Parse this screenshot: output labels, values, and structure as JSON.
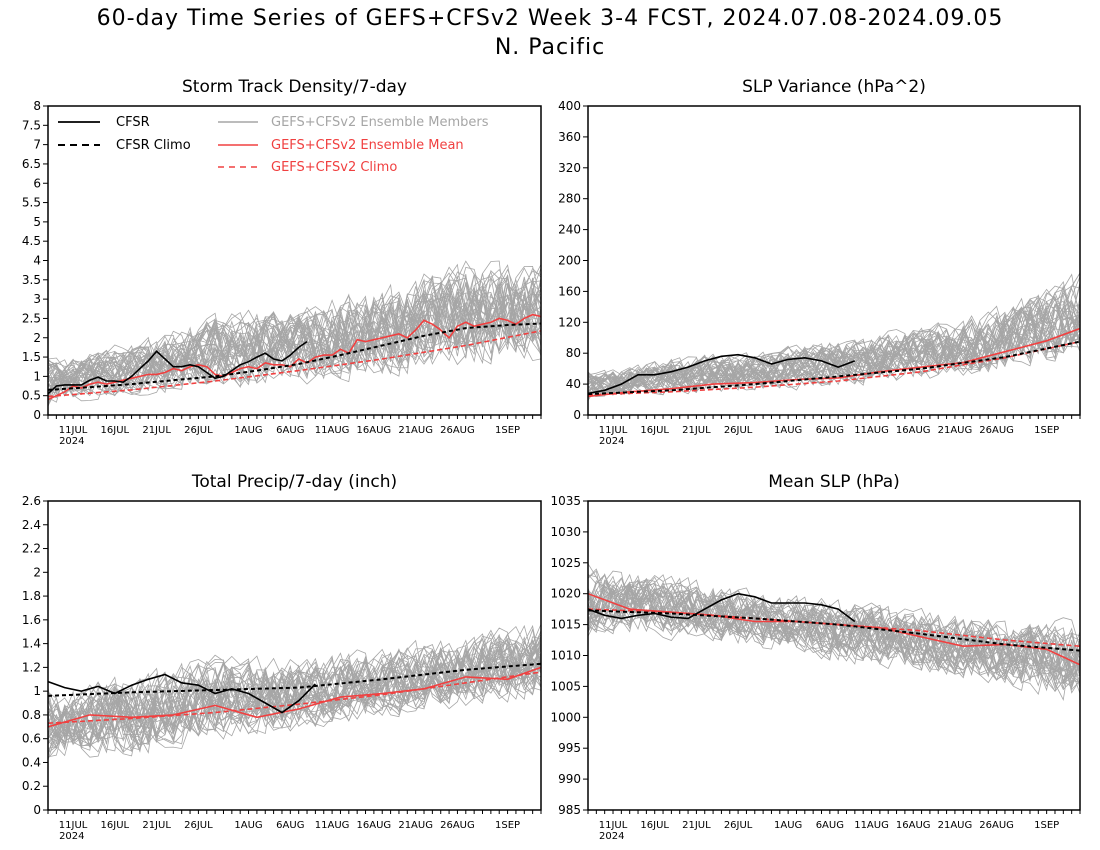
{
  "title": "60-day Time Series of GEFS+CFSv2 Week 3-4 FCST, 2024.07.08-2024.09.05",
  "subtitle": "N. Pacific",
  "colors": {
    "cfsr": "#000000",
    "members": "#a6a6a6",
    "ensemble_mean": "#f04040",
    "gefs_climo": "#f04040"
  },
  "legend": {
    "cfsr": "CFSR",
    "cfsr_climo": "CFSR Climo",
    "members": "GEFS+CFSv2 Ensemble Members",
    "ensemble_mean": "GEFS+CFSv2 Ensemble Mean",
    "gefs_climo": "GEFS+CFSv2 Climo"
  },
  "chart_data": [
    {
      "type": "line",
      "title": "Storm Track Density/7-day",
      "x_tick_labels": [
        "11JUL",
        "16JUL",
        "21JUL",
        "26JUL",
        "1AUG",
        "6AUG",
        "11AUG",
        "16AUG",
        "21AUG",
        "26AUG",
        "1SEP"
      ],
      "x_tick_days": [
        3,
        8,
        13,
        18,
        24,
        29,
        34,
        39,
        44,
        49,
        55
      ],
      "year_label": "2024",
      "x_range": [
        0,
        59
      ],
      "ylim": [
        0,
        8
      ],
      "y_ticks": [
        "0",
        "0.5",
        "1",
        "1.5",
        "2",
        "2.5",
        "3",
        "3.5",
        "4",
        "4.5",
        "5",
        "5.5",
        "6",
        "6.5",
        "7",
        "7.5",
        "8"
      ],
      "legend_position": "top",
      "series": [
        {
          "name": "CFSR",
          "style": "solid-black",
          "x": [
            0,
            1,
            2,
            3,
            4,
            5,
            6,
            7,
            8,
            9,
            10,
            11,
            12,
            13,
            14,
            15,
            16,
            17,
            18,
            19,
            20,
            21,
            22,
            23,
            24,
            25,
            26,
            27,
            28,
            29,
            30,
            31
          ],
          "values": [
            0.55,
            0.75,
            0.78,
            0.78,
            0.78,
            0.9,
            0.98,
            0.88,
            0.88,
            0.85,
            1.0,
            1.2,
            1.4,
            1.65,
            1.45,
            1.25,
            1.25,
            1.3,
            1.25,
            1.1,
            0.95,
            1.0,
            1.15,
            1.3,
            1.38,
            1.5,
            1.6,
            1.45,
            1.4,
            1.55,
            1.75,
            1.9
          ]
        },
        {
          "name": "CFSR Climo",
          "style": "dashed-black",
          "x": [
            0,
            5,
            10,
            15,
            20,
            25,
            30,
            35,
            40,
            45,
            50,
            55,
            59
          ],
          "values": [
            0.65,
            0.72,
            0.8,
            0.9,
            1.0,
            1.15,
            1.32,
            1.55,
            1.8,
            2.05,
            2.25,
            2.33,
            2.37
          ]
        },
        {
          "name": "GEFS+CFSv2 Ensemble Mean",
          "style": "solid-red",
          "x": [
            0,
            1,
            2,
            3,
            4,
            5,
            6,
            7,
            8,
            9,
            10,
            11,
            12,
            13,
            14,
            15,
            16,
            17,
            18,
            19,
            20,
            21,
            22,
            23,
            24,
            25,
            26,
            27,
            28,
            29,
            30,
            31,
            32,
            33,
            34,
            35,
            36,
            37,
            38,
            39,
            40,
            41,
            42,
            43,
            44,
            45,
            46,
            47,
            48,
            49,
            50,
            51,
            52,
            53,
            54,
            55,
            56,
            57,
            58,
            59
          ],
          "values": [
            0.4,
            0.5,
            0.6,
            0.75,
            0.7,
            0.8,
            0.85,
            0.8,
            0.85,
            0.9,
            0.95,
            1.0,
            1.05,
            1.05,
            1.1,
            1.2,
            1.15,
            1.25,
            1.3,
            1.25,
            1.05,
            1.0,
            1.1,
            1.2,
            1.25,
            1.2,
            1.35,
            1.3,
            1.3,
            1.25,
            1.45,
            1.35,
            1.5,
            1.55,
            1.55,
            1.7,
            1.6,
            1.95,
            1.9,
            1.95,
            2.0,
            2.05,
            2.1,
            2.0,
            2.2,
            2.45,
            2.35,
            2.2,
            2.0,
            2.3,
            2.4,
            2.3,
            2.35,
            2.4,
            2.5,
            2.45,
            2.35,
            2.5,
            2.6,
            2.55
          ]
        },
        {
          "name": "GEFS+CFSv2 Climo",
          "style": "dashed-red",
          "x": [
            0,
            10,
            20,
            30,
            40,
            50,
            59
          ],
          "values": [
            0.48,
            0.65,
            0.88,
            1.15,
            1.45,
            1.8,
            2.18
          ]
        }
      ],
      "members": {
        "count": 40,
        "spread_low": [
          0.1,
          0.2,
          0.3,
          0.4,
          0.55,
          0.7,
          0.9
        ],
        "spread_high": [
          1.6,
          2.2,
          3.0,
          3.3,
          3.9,
          4.6,
          4.4
        ],
        "x": [
          0,
          10,
          20,
          30,
          40,
          50,
          59
        ]
      }
    },
    {
      "type": "line",
      "title": "SLP Variance (hPa^2)",
      "x_tick_labels": [
        "11JUL",
        "16JUL",
        "21JUL",
        "26JUL",
        "1AUG",
        "6AUG",
        "11AUG",
        "16AUG",
        "21AUG",
        "26AUG",
        "1SEP"
      ],
      "x_tick_days": [
        3,
        8,
        13,
        18,
        24,
        29,
        34,
        39,
        44,
        49,
        55
      ],
      "year_label": "2024",
      "x_range": [
        0,
        59
      ],
      "ylim": [
        0,
        400
      ],
      "y_ticks": [
        "0",
        "40",
        "80",
        "120",
        "160",
        "200",
        "240",
        "280",
        "320",
        "360",
        "400"
      ],
      "series": [
        {
          "name": "CFSR",
          "style": "solid-black",
          "x": [
            0,
            2,
            4,
            6,
            8,
            10,
            12,
            14,
            16,
            18,
            20,
            22,
            24,
            26,
            28,
            30,
            32
          ],
          "values": [
            28,
            32,
            40,
            52,
            52,
            56,
            62,
            70,
            76,
            78,
            74,
            66,
            72,
            74,
            70,
            62,
            70
          ]
        },
        {
          "name": "CFSR Climo",
          "style": "dashed-black",
          "x": [
            0,
            10,
            20,
            30,
            40,
            50,
            59
          ],
          "values": [
            27,
            32,
            40,
            50,
            60,
            75,
            95
          ]
        },
        {
          "name": "GEFS+CFSv2 Ensemble Mean",
          "style": "solid-red",
          "x": [
            0,
            5,
            10,
            15,
            20,
            25,
            30,
            35,
            40,
            45,
            50,
            55,
            59
          ],
          "values": [
            24,
            30,
            34,
            40,
            42,
            46,
            48,
            56,
            62,
            68,
            82,
            96,
            112
          ]
        },
        {
          "name": "GEFS+CFSv2 Climo",
          "style": "dashed-red",
          "x": [
            0,
            10,
            20,
            30,
            40,
            50,
            59
          ],
          "values": [
            26,
            30,
            36,
            44,
            56,
            74,
            95
          ]
        }
      ],
      "members": {
        "count": 40,
        "spread_low": [
          15,
          18,
          20,
          25,
          30,
          40,
          50
        ],
        "spread_high": [
          60,
          85,
          95,
          110,
          130,
          160,
          210
        ],
        "x": [
          0,
          10,
          20,
          30,
          40,
          50,
          59
        ]
      }
    },
    {
      "type": "line",
      "title": "Total Precip/7-day (inch)",
      "x_tick_labels": [
        "11JUL",
        "16JUL",
        "21JUL",
        "26JUL",
        "1AUG",
        "6AUG",
        "11AUG",
        "16AUG",
        "21AUG",
        "26AUG",
        "1SEP"
      ],
      "x_tick_days": [
        3,
        8,
        13,
        18,
        24,
        29,
        34,
        39,
        44,
        49,
        55
      ],
      "year_label": "2024",
      "x_range": [
        0,
        59
      ],
      "ylim": [
        0,
        2.6
      ],
      "y_ticks": [
        "0",
        "0.2",
        "0.4",
        "0.6",
        "0.8",
        "1",
        "1.2",
        "1.4",
        "1.6",
        "1.8",
        "2",
        "2.2",
        "2.4",
        "2.6"
      ],
      "series": [
        {
          "name": "CFSR",
          "style": "solid-black",
          "x": [
            0,
            2,
            4,
            6,
            8,
            10,
            12,
            14,
            16,
            18,
            20,
            22,
            24,
            26,
            28,
            30,
            32
          ],
          "values": [
            1.08,
            1.03,
            1.0,
            1.04,
            0.98,
            1.05,
            1.1,
            1.14,
            1.07,
            1.05,
            0.98,
            1.02,
            0.98,
            0.9,
            0.82,
            0.92,
            1.06
          ]
        },
        {
          "name": "CFSR Climo",
          "style": "dashed-black",
          "x": [
            0,
            10,
            20,
            30,
            40,
            50,
            59
          ],
          "values": [
            0.96,
            0.99,
            1.01,
            1.03,
            1.1,
            1.18,
            1.23
          ]
        },
        {
          "name": "GEFS+CFSv2 Ensemble Mean",
          "style": "solid-red",
          "x": [
            0,
            5,
            10,
            15,
            20,
            25,
            30,
            35,
            40,
            45,
            50,
            55,
            59
          ],
          "values": [
            0.7,
            0.8,
            0.78,
            0.8,
            0.88,
            0.78,
            0.85,
            0.95,
            0.98,
            1.02,
            1.12,
            1.1,
            1.2
          ]
        },
        {
          "name": "GEFS+CFSv2 Climo",
          "style": "dashed-red",
          "x": [
            0,
            10,
            20,
            30,
            40,
            50,
            59
          ],
          "values": [
            0.73,
            0.77,
            0.82,
            0.89,
            0.97,
            1.07,
            1.16
          ]
        }
      ],
      "members": {
        "count": 40,
        "spread_low": [
          0.35,
          0.3,
          0.45,
          0.55,
          0.65,
          0.75,
          0.85
        ],
        "spread_high": [
          1.1,
          1.3,
          1.45,
          1.4,
          1.5,
          1.6,
          1.75
        ],
        "x": [
          0,
          10,
          20,
          30,
          40,
          50,
          59
        ]
      }
    },
    {
      "type": "line",
      "title": "Mean SLP (hPa)",
      "x_tick_labels": [
        "11JUL",
        "16JUL",
        "21JUL",
        "26JUL",
        "1AUG",
        "6AUG",
        "11AUG",
        "16AUG",
        "21AUG",
        "26AUG",
        "1SEP"
      ],
      "x_tick_days": [
        3,
        8,
        13,
        18,
        24,
        29,
        34,
        39,
        44,
        49,
        55
      ],
      "year_label": "2024",
      "x_range": [
        0,
        59
      ],
      "ylim": [
        985,
        1035
      ],
      "y_ticks": [
        "985",
        "990",
        "995",
        "1000",
        "1005",
        "1010",
        "1015",
        "1020",
        "1025",
        "1030",
        "1035"
      ],
      "series": [
        {
          "name": "CFSR",
          "style": "solid-black",
          "x": [
            0,
            2,
            4,
            6,
            8,
            10,
            12,
            14,
            16,
            18,
            20,
            22,
            24,
            26,
            28,
            30,
            32
          ],
          "values": [
            1017.5,
            1016.5,
            1016,
            1016.5,
            1016.8,
            1016.2,
            1016,
            1017.5,
            1019,
            1020,
            1019.5,
            1018.5,
            1018.5,
            1018.5,
            1018.2,
            1017.5,
            1015.5
          ]
        },
        {
          "name": "CFSR Climo",
          "style": "dashed-black",
          "x": [
            0,
            10,
            20,
            30,
            40,
            50,
            59
          ],
          "values": [
            1017.3,
            1016.8,
            1016,
            1015,
            1013.5,
            1011.8,
            1010.8
          ]
        },
        {
          "name": "GEFS+CFSv2 Ensemble Mean",
          "style": "solid-red",
          "x": [
            0,
            5,
            10,
            15,
            20,
            25,
            30,
            35,
            40,
            45,
            50,
            55,
            59
          ],
          "values": [
            1020,
            1017.5,
            1017,
            1016.5,
            1015.5,
            1015.5,
            1015,
            1014.5,
            1013,
            1011.5,
            1011.8,
            1011,
            1008.5
          ]
        },
        {
          "name": "GEFS+CFSv2 Climo",
          "style": "dashed-red",
          "x": [
            0,
            10,
            20,
            30,
            40,
            50,
            59
          ],
          "values": [
            1017.5,
            1017,
            1016,
            1015,
            1014,
            1012.5,
            1011.5
          ]
        }
      ],
      "members": {
        "count": 40,
        "spread_low": [
          1012,
          1011,
          1009,
          1007,
          1005,
          1003,
          999
        ],
        "spread_high": [
          1026,
          1025,
          1022,
          1021,
          1019,
          1018,
          1018
        ],
        "x": [
          0,
          10,
          20,
          30,
          40,
          50,
          59
        ]
      }
    }
  ]
}
